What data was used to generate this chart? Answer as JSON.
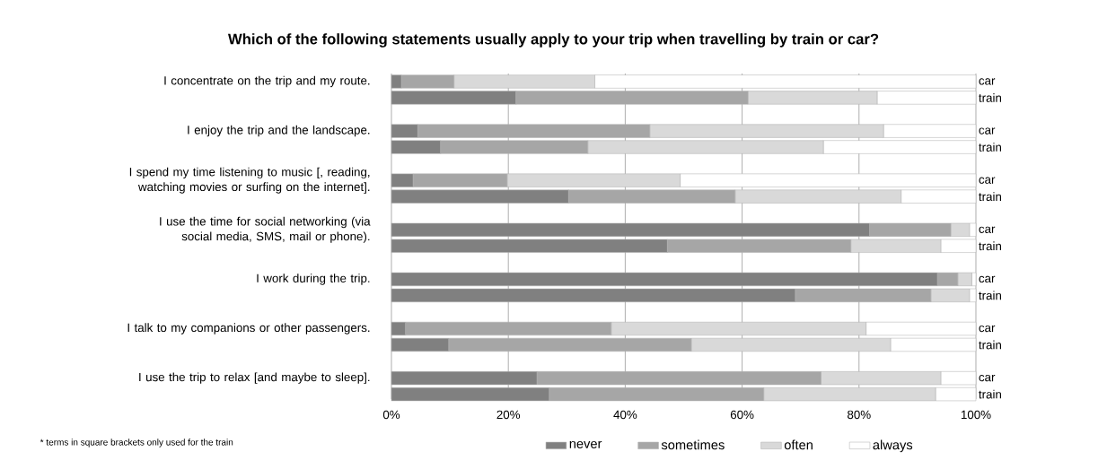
{
  "chart_data": {
    "type": "bar",
    "orientation": "horizontal",
    "stacked": true,
    "title": "Which of the following statements usually apply to your trip  when travelling by train or car?",
    "categories": [
      "car",
      "train",
      "car",
      "train",
      "car",
      "train",
      "car",
      "train",
      "car",
      "train",
      "car",
      "train",
      "car",
      "train"
    ],
    "series": [
      {
        "name": "never",
        "color": "#808080",
        "values": [
          1.7,
          21.3,
          4.5,
          8.4,
          3.7,
          30.3,
          81.8,
          47.2,
          93.4,
          69.1,
          2.4,
          9.8,
          24.9,
          27.0
        ]
      },
      {
        "name": "sometimes",
        "color": "#a6a6a6",
        "values": [
          9.0,
          39.7,
          39.7,
          25.2,
          16.1,
          28.5,
          13.9,
          31.4,
          3.5,
          23.2,
          35.2,
          41.5,
          48.6,
          36.7
        ]
      },
      {
        "name": "often",
        "color": "#d9d9d9",
        "values": [
          24.1,
          22.1,
          40.0,
          40.3,
          29.6,
          28.4,
          3.2,
          15.4,
          2.4,
          6.6,
          43.6,
          34.1,
          20.5,
          29.4
        ]
      },
      {
        "name": "always",
        "color": "#ffffff",
        "values": [
          65.2,
          16.9,
          15.8,
          26.1,
          50.6,
          12.8,
          1.1,
          6.0,
          0.7,
          1.1,
          18.8,
          14.6,
          6.0,
          6.9
        ]
      }
    ],
    "xlim": [
      0,
      100
    ],
    "xticks": [
      {
        "value": 0,
        "label": "0%"
      },
      {
        "value": 20,
        "label": "20%"
      },
      {
        "value": 40,
        "label": "40%"
      },
      {
        "value": 60,
        "label": "60%"
      },
      {
        "value": 80,
        "label": "80%"
      },
      {
        "value": 100,
        "label": "100%"
      }
    ],
    "grid": "x",
    "legend": "bottom",
    "annotations": [
      "I concentrate on the trip and my route.",
      "I enjoy the trip and the landscape.",
      "I spend my time listening to music [, reading, watching movies or surfing on the internet].",
      "I use the time for social networking (via social media, SMS, mail or phone).",
      "I work during the trip.",
      "I talk to my companions  or other passengers.",
      "I use the trip to relax [and maybe to sleep].",
      "* terms in square brackets only used for the train"
    ]
  }
}
